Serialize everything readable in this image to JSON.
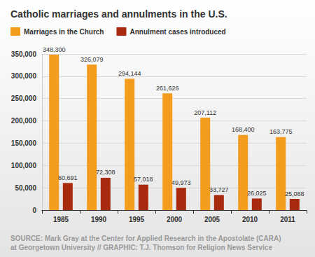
{
  "chart_data": {
    "type": "bar",
    "title": "Catholic marriages and annulments in the U.S.",
    "annotations": [
      "SOURCE: Mark Gray at the Center for Applied Research in the Apostolate (CARA)",
      "at Georgetown University // GRAPHIC: T.J. Thomson for Religion News Service"
    ],
    "categories": [
      "1985",
      "1990",
      "1995",
      "2000",
      "2005",
      "2010",
      "2011"
    ],
    "series": [
      {
        "name": "Marriages in the Church",
        "color": "#f39c1e",
        "values": [
          348300,
          326079,
          294144,
          261626,
          207112,
          168400,
          163775
        ],
        "value_labels": [
          "348,300",
          "326,079",
          "294,144",
          "261,626",
          "207,112",
          "168,400",
          "163,775"
        ]
      },
      {
        "name": "Annulment cases introduced",
        "color": "#a82a0e",
        "values": [
          60691,
          72308,
          57018,
          49973,
          33727,
          26025,
          25088
        ],
        "value_labels": [
          "60,691",
          "72,308",
          "57,018",
          "49,973",
          "33,727",
          "26,025",
          "25,088"
        ]
      }
    ],
    "ylim": [
      0,
      350000
    ],
    "yticks": [
      0,
      {
        "value": 50000,
        "label": "50,000"
      },
      {
        "value": 100000,
        "label": "100,000"
      },
      {
        "value": 150000,
        "label": "150,000"
      },
      {
        "value": 200000,
        "label": "200,000"
      },
      {
        "value": 250000,
        "label": "250,000"
      },
      {
        "value": 300000,
        "label": "300,000"
      },
      {
        "value": 350000,
        "label": "350,000"
      }
    ],
    "grid": true,
    "legend": "top-left",
    "data_labels": true
  }
}
